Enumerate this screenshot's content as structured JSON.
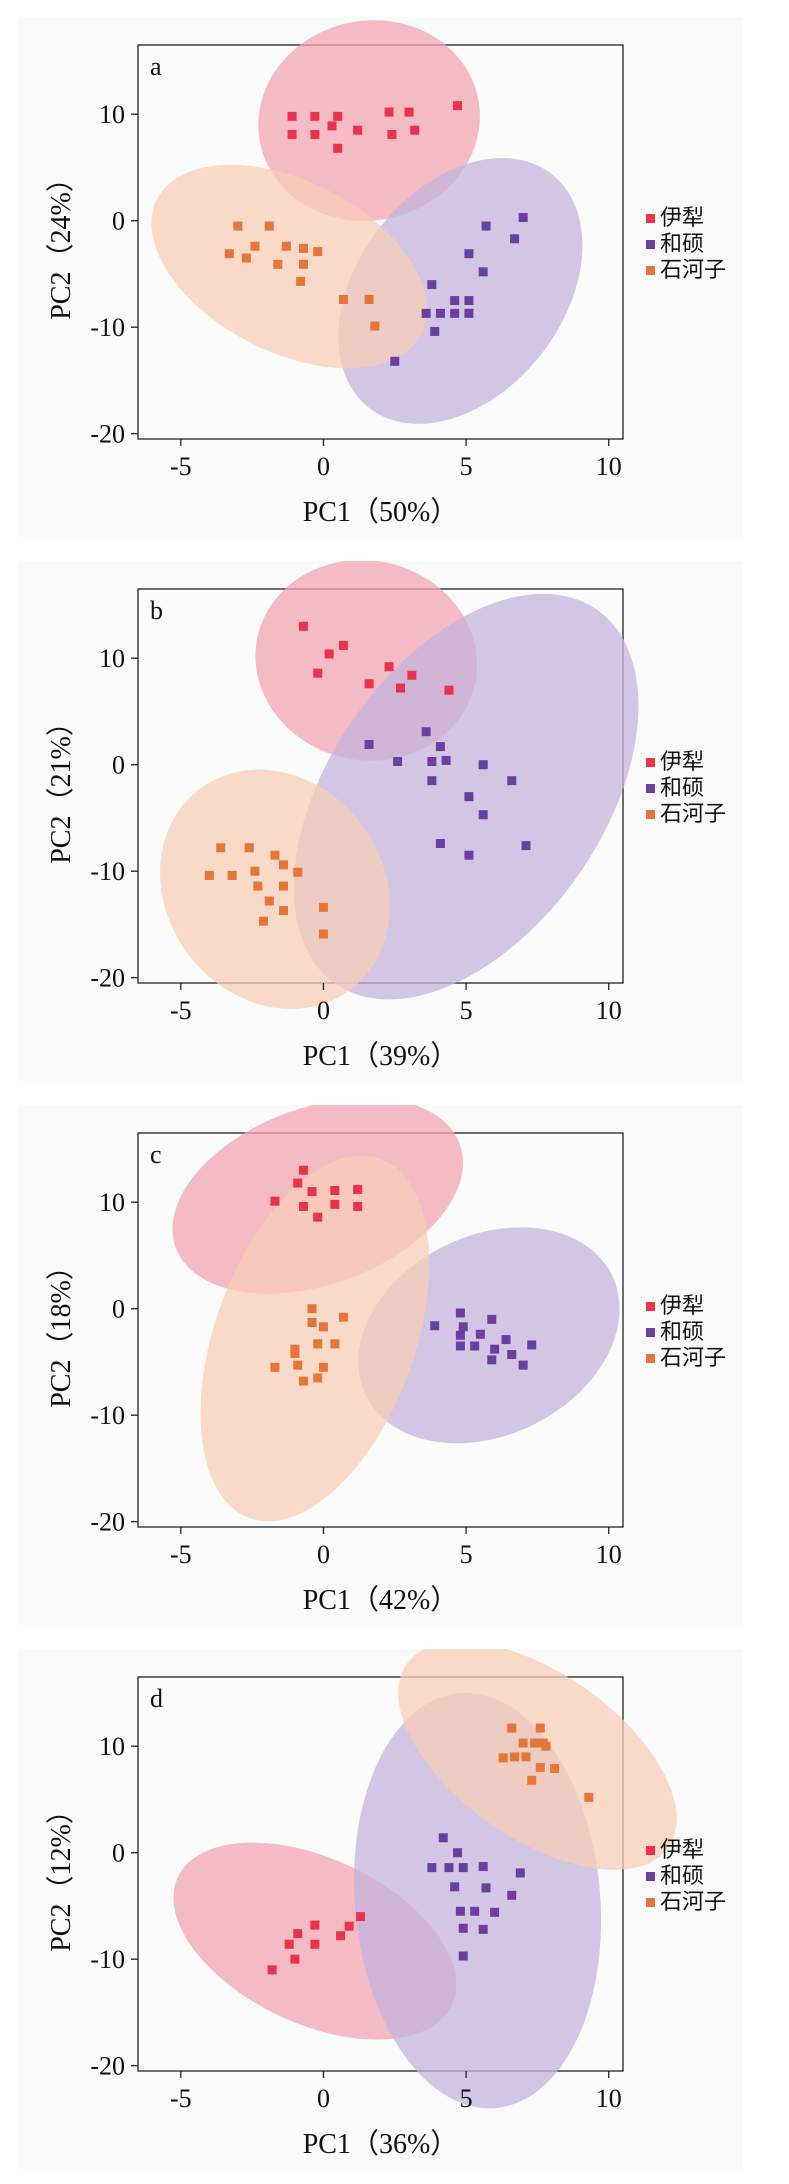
{
  "chart_data": [
    {
      "type": "scatter",
      "panel_label": "a",
      "xlabel": "PC1（50%）",
      "ylabel": "PC2（24%）",
      "xlim": [
        -6.5,
        10.5
      ],
      "ylim": [
        -20.5,
        16.5
      ],
      "xticks": [
        -5,
        0,
        5,
        10
      ],
      "yticks": [
        -20,
        -10,
        0,
        10
      ],
      "legend_position": "right",
      "series": [
        {
          "name": "伊犁",
          "color": "#e8334a",
          "fill": "#f2a6b3",
          "ellipse": {
            "cx": 1.6,
            "cy": 9.4,
            "rx": 3.9,
            "ry": 3.5,
            "angle": 12
          },
          "points": [
            [
              -1.1,
              9.8
            ],
            [
              -0.3,
              9.8
            ],
            [
              0.5,
              9.8
            ],
            [
              2.3,
              10.2
            ],
            [
              3.0,
              10.2
            ],
            [
              4.7,
              10.8
            ],
            [
              -1.1,
              8.1
            ],
            [
              -0.3,
              8.1
            ],
            [
              0.3,
              8.9
            ],
            [
              1.2,
              8.5
            ],
            [
              2.4,
              8.1
            ],
            [
              3.2,
              8.5
            ],
            [
              0.5,
              6.8
            ]
          ]
        },
        {
          "name": "和硕",
          "color": "#6b3fa0",
          "fill": "#c6b3dc",
          "ellipse": {
            "cx": 4.8,
            "cy": -6.6,
            "rx": 5.2,
            "ry": 3.6,
            "angle": 52
          },
          "points": [
            [
              7.0,
              0.3
            ],
            [
              5.7,
              -0.5
            ],
            [
              6.7,
              -1.7
            ],
            [
              5.1,
              -3.1
            ],
            [
              5.6,
              -4.8
            ],
            [
              3.8,
              -6.0
            ],
            [
              4.6,
              -7.5
            ],
            [
              5.1,
              -7.5
            ],
            [
              3.6,
              -8.7
            ],
            [
              4.1,
              -8.7
            ],
            [
              4.6,
              -8.7
            ],
            [
              5.1,
              -8.7
            ],
            [
              3.9,
              -10.4
            ],
            [
              2.5,
              -13.2
            ]
          ]
        },
        {
          "name": "石河子",
          "color": "#e5763a",
          "fill": "#f8cdb6",
          "ellipse": {
            "cx": -1.2,
            "cy": -4.3,
            "rx": 5.2,
            "ry": 3.0,
            "angle": -27
          },
          "points": [
            [
              -3.0,
              -0.5
            ],
            [
              -1.9,
              -0.5
            ],
            [
              -1.3,
              -2.4
            ],
            [
              -2.4,
              -2.4
            ],
            [
              -3.3,
              -3.1
            ],
            [
              -0.7,
              -2.6
            ],
            [
              -0.2,
              -2.9
            ],
            [
              -1.6,
              -4.1
            ],
            [
              -2.7,
              -3.5
            ],
            [
              -0.7,
              -4.1
            ],
            [
              -0.8,
              -5.7
            ],
            [
              0.7,
              -7.4
            ],
            [
              1.6,
              -7.4
            ],
            [
              1.8,
              -9.9
            ]
          ]
        }
      ]
    },
    {
      "type": "scatter",
      "panel_label": "b",
      "xlabel": "PC1（39%）",
      "ylabel": "PC2（21%）",
      "xlim": [
        -6.5,
        10.5
      ],
      "ylim": [
        -20.5,
        16.5
      ],
      "xticks": [
        -5,
        0,
        5,
        10
      ],
      "yticks": [
        -20,
        -10,
        0,
        10
      ],
      "legend_position": "right",
      "series": [
        {
          "name": "伊犁",
          "color": "#e8334a",
          "fill": "#f2a6b3",
          "ellipse": {
            "cx": 1.5,
            "cy": 9.8,
            "rx": 3.9,
            "ry": 3.5,
            "angle": -12
          },
          "points": [
            [
              -0.7,
              13.0
            ],
            [
              0.2,
              10.4
            ],
            [
              0.7,
              11.2
            ],
            [
              -0.2,
              8.6
            ],
            [
              2.3,
              9.2
            ],
            [
              3.1,
              8.4
            ],
            [
              1.6,
              7.6
            ],
            [
              2.7,
              7.2
            ],
            [
              4.4,
              7.0
            ]
          ]
        },
        {
          "name": "和硕",
          "color": "#6b3fa0",
          "fill": "#c6b3dc",
          "ellipse": {
            "cx": 5.0,
            "cy": -3.0,
            "rx": 4.8,
            "ry": 8.0,
            "angle": -35
          },
          "points": [
            [
              1.6,
              1.9
            ],
            [
              3.6,
              3.1
            ],
            [
              4.1,
              1.7
            ],
            [
              2.6,
              0.3
            ],
            [
              3.8,
              0.3
            ],
            [
              4.3,
              0.4
            ],
            [
              3.8,
              -1.5
            ],
            [
              5.6,
              0.0
            ],
            [
              6.6,
              -1.5
            ],
            [
              5.1,
              -3.0
            ],
            [
              5.6,
              -4.7
            ],
            [
              4.1,
              -7.4
            ],
            [
              5.1,
              -8.5
            ],
            [
              7.1,
              -7.6
            ]
          ]
        },
        {
          "name": "石河子",
          "color": "#e5763a",
          "fill": "#f8cdb6",
          "ellipse": {
            "cx": -1.7,
            "cy": -11.7,
            "rx": 3.8,
            "ry": 4.4,
            "angle": 37
          },
          "points": [
            [
              -3.6,
              -7.8
            ],
            [
              -2.6,
              -7.8
            ],
            [
              -1.7,
              -8.5
            ],
            [
              -4.0,
              -10.4
            ],
            [
              -3.2,
              -10.4
            ],
            [
              -2.4,
              -10.0
            ],
            [
              -1.4,
              -9.4
            ],
            [
              -0.9,
              -10.1
            ],
            [
              -2.3,
              -11.4
            ],
            [
              -1.4,
              -11.4
            ],
            [
              -1.9,
              -12.8
            ],
            [
              -1.4,
              -13.7
            ],
            [
              -2.1,
              -14.7
            ],
            [
              0.0,
              -13.4
            ],
            [
              0.0,
              -15.9
            ]
          ]
        }
      ]
    },
    {
      "type": "scatter",
      "panel_label": "c",
      "xlabel": "PC1（42%）",
      "ylabel": "PC2（18%）",
      "xlim": [
        -6.5,
        10.5
      ],
      "ylim": [
        -20.5,
        16.5
      ],
      "xticks": [
        -5,
        0,
        5,
        10
      ],
      "yticks": [
        -20,
        -10,
        0,
        10
      ],
      "legend_position": "right",
      "series": [
        {
          "name": "伊犁",
          "color": "#e8334a",
          "fill": "#f2a6b3",
          "ellipse": {
            "cx": -0.2,
            "cy": 10.6,
            "rx": 5.3,
            "ry": 3.1,
            "angle": 20
          },
          "points": [
            [
              -0.7,
              13.0
            ],
            [
              -0.9,
              11.8
            ],
            [
              -0.4,
              11.0
            ],
            [
              0.4,
              11.1
            ],
            [
              1.2,
              11.2
            ],
            [
              -1.7,
              10.1
            ],
            [
              -0.7,
              9.6
            ],
            [
              0.4,
              9.8
            ],
            [
              -0.2,
              8.6
            ],
            [
              1.2,
              9.6
            ]
          ]
        },
        {
          "name": "和硕",
          "color": "#6b3fa0",
          "fill": "#c6b3dc",
          "ellipse": {
            "cx": 5.8,
            "cy": -2.5,
            "rx": 4.8,
            "ry": 3.5,
            "angle": 26
          },
          "points": [
            [
              4.8,
              -0.4
            ],
            [
              5.9,
              -1.0
            ],
            [
              3.9,
              -1.6
            ],
            [
              4.9,
              -1.7
            ],
            [
              4.8,
              -2.5
            ],
            [
              5.5,
              -2.4
            ],
            [
              6.4,
              -2.9
            ],
            [
              5.3,
              -3.5
            ],
            [
              4.8,
              -3.5
            ],
            [
              6.0,
              -3.8
            ],
            [
              7.3,
              -3.4
            ],
            [
              5.9,
              -4.8
            ],
            [
              6.6,
              -4.3
            ],
            [
              7.0,
              -5.3
            ]
          ]
        },
        {
          "name": "石河子",
          "color": "#e5763a",
          "fill": "#f8cdb6",
          "ellipse": {
            "cx": -0.3,
            "cy": -2.8,
            "rx": 6.7,
            "ry": 3.5,
            "angle": 70
          },
          "points": [
            [
              -0.4,
              0.0
            ],
            [
              0.7,
              -0.8
            ],
            [
              -0.4,
              -1.3
            ],
            [
              0.0,
              -1.7
            ],
            [
              -0.2,
              -3.3
            ],
            [
              0.4,
              -3.3
            ],
            [
              -1.0,
              -3.8
            ],
            [
              -1.0,
              -4.2
            ],
            [
              -1.7,
              -5.5
            ],
            [
              -0.9,
              -5.3
            ],
            [
              0.0,
              -5.5
            ],
            [
              -0.2,
              -6.5
            ],
            [
              -0.7,
              -6.8
            ]
          ]
        }
      ]
    },
    {
      "type": "scatter",
      "panel_label": "d",
      "xlabel": "PC1（36%）",
      "ylabel": "PC2（12%）",
      "xlim": [
        -6.5,
        10.5
      ],
      "ylim": [
        -20.5,
        16.5
      ],
      "xticks": [
        -5,
        0,
        5,
        10
      ],
      "yticks": [
        -20,
        -10,
        0,
        10
      ],
      "legend_position": "right",
      "series": [
        {
          "name": "伊犁",
          "color": "#e8334a",
          "fill": "#f2a6b3",
          "ellipse": {
            "cx": -0.3,
            "cy": -8.3,
            "rx": 5.3,
            "ry": 2.9,
            "angle": -25
          },
          "points": [
            [
              1.3,
              -6.0
            ],
            [
              0.9,
              -6.9
            ],
            [
              -0.3,
              -6.8
            ],
            [
              -0.9,
              -7.6
            ],
            [
              0.6,
              -7.8
            ],
            [
              -0.3,
              -8.6
            ],
            [
              -1.2,
              -8.6
            ],
            [
              -1.0,
              -10.0
            ],
            [
              -1.8,
              -11.0
            ]
          ]
        },
        {
          "name": "和硕",
          "color": "#6b3fa0",
          "fill": "#c6b3dc",
          "ellipse": {
            "cx": 5.4,
            "cy": -4.5,
            "rx": 7.3,
            "ry": 4.3,
            "angle": 95
          },
          "points": [
            [
              4.2,
              1.4
            ],
            [
              4.7,
              0.0
            ],
            [
              3.8,
              -1.4
            ],
            [
              4.4,
              -1.4
            ],
            [
              4.9,
              -1.4
            ],
            [
              5.6,
              -1.3
            ],
            [
              6.9,
              -1.9
            ],
            [
              4.6,
              -3.2
            ],
            [
              5.7,
              -3.3
            ],
            [
              6.6,
              -4.0
            ],
            [
              4.8,
              -5.5
            ],
            [
              5.3,
              -5.5
            ],
            [
              6.0,
              -5.6
            ],
            [
              4.9,
              -7.1
            ],
            [
              5.6,
              -7.2
            ],
            [
              4.9,
              -9.7
            ]
          ]
        },
        {
          "name": "石河子",
          "color": "#e5763a",
          "fill": "#f8cdb6",
          "ellipse": {
            "cx": 7.5,
            "cy": 9.1,
            "rx": 5.6,
            "ry": 2.9,
            "angle": -35
          },
          "points": [
            [
              6.6,
              11.7
            ],
            [
              7.6,
              11.7
            ],
            [
              7.0,
              10.3
            ],
            [
              7.4,
              10.3
            ],
            [
              7.7,
              10.3
            ],
            [
              7.8,
              10.0
            ],
            [
              6.7,
              9.0
            ],
            [
              6.3,
              8.9
            ],
            [
              7.1,
              9.0
            ],
            [
              7.6,
              8.0
            ],
            [
              7.3,
              6.8
            ],
            [
              8.1,
              7.9
            ],
            [
              9.3,
              5.2
            ]
          ]
        }
      ]
    }
  ]
}
